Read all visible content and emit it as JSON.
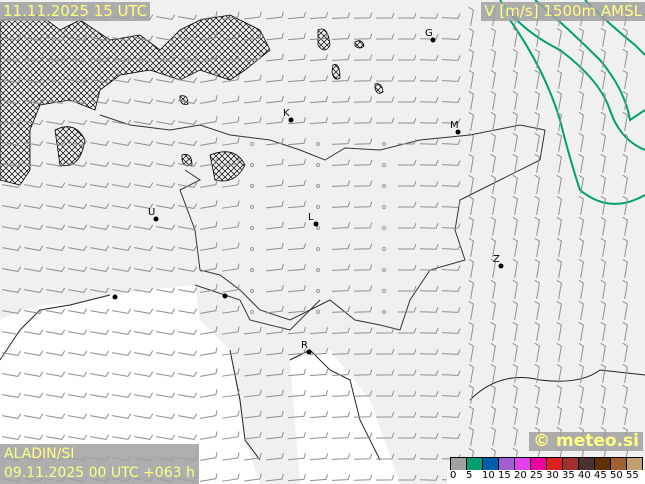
{
  "header": {
    "valid_time": "11.11.2025 15 UTC",
    "parameter": "V [m/s] 1500m AMSL"
  },
  "footer": {
    "model": "ALADIN/SI",
    "run": "09.11.2025 00 UTC +063 h",
    "copyright": "© meteo.si"
  },
  "legend": {
    "colors": [
      "#a0a0a0",
      "#00a070",
      "#0060b0",
      "#a060d0",
      "#e040f0",
      "#f000a0",
      "#e02020",
      "#a03030",
      "#4a3030",
      "#603000",
      "#a06030",
      "#c0a070"
    ],
    "ticks": [
      "0",
      "5",
      "10",
      "15",
      "20",
      "25",
      "30",
      "35",
      "40",
      "45",
      "50",
      "55"
    ]
  },
  "cities": [
    {
      "label": "G"
    },
    {
      "label": "K"
    },
    {
      "label": "M"
    },
    {
      "label": "L"
    },
    {
      "label": "U"
    },
    {
      "label": "Z"
    },
    {
      "label": "R"
    }
  ],
  "colors": {
    "contour": "#00a070",
    "border": "#333333",
    "barb": "#909090",
    "hatch": "#000000"
  }
}
